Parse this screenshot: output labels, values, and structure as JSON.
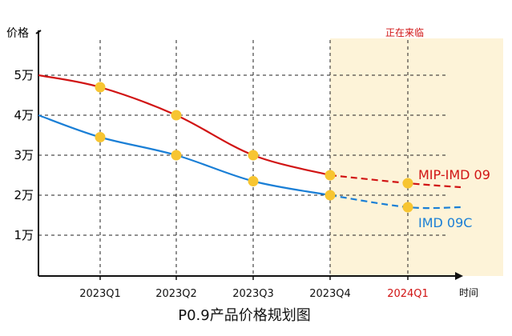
{
  "chart_data": {
    "type": "line",
    "title": "P0.9产品价格规划图",
    "ylabel": "价格",
    "xlabel": "时间",
    "annotation": "正在来临",
    "categories": [
      "2023Q1",
      "2023Q2",
      "2023Q3",
      "2023Q4",
      "2024Q1"
    ],
    "future_categories": [
      "2024Q1"
    ],
    "y_ticks": [
      {
        "value": 1,
        "label": "1万"
      },
      {
        "value": 2,
        "label": "2万"
      },
      {
        "value": 3,
        "label": "3万"
      },
      {
        "value": 4,
        "label": "4万"
      },
      {
        "value": 5,
        "label": "5万"
      }
    ],
    "ylim": [
      0,
      6
    ],
    "grid": "dashed",
    "highlight_region": {
      "from": "2023Q4",
      "to": "end",
      "color": "#fdf3d8"
    },
    "series": [
      {
        "name": "MIP-IMD 09",
        "color": "#d11414",
        "start_value": 5.0,
        "values": [
          4.7,
          4.0,
          3.0,
          2.5,
          2.3
        ],
        "end_value": 2.2,
        "projected_from": "2023Q4"
      },
      {
        "name": "IMD 09C",
        "color": "#1a7fd6",
        "start_value": 4.0,
        "values": [
          3.45,
          3.0,
          2.35,
          2.0,
          1.7
        ],
        "end_value": 1.7,
        "projected_from": "2023Q4"
      }
    ],
    "marker_color": "#f7c531"
  }
}
